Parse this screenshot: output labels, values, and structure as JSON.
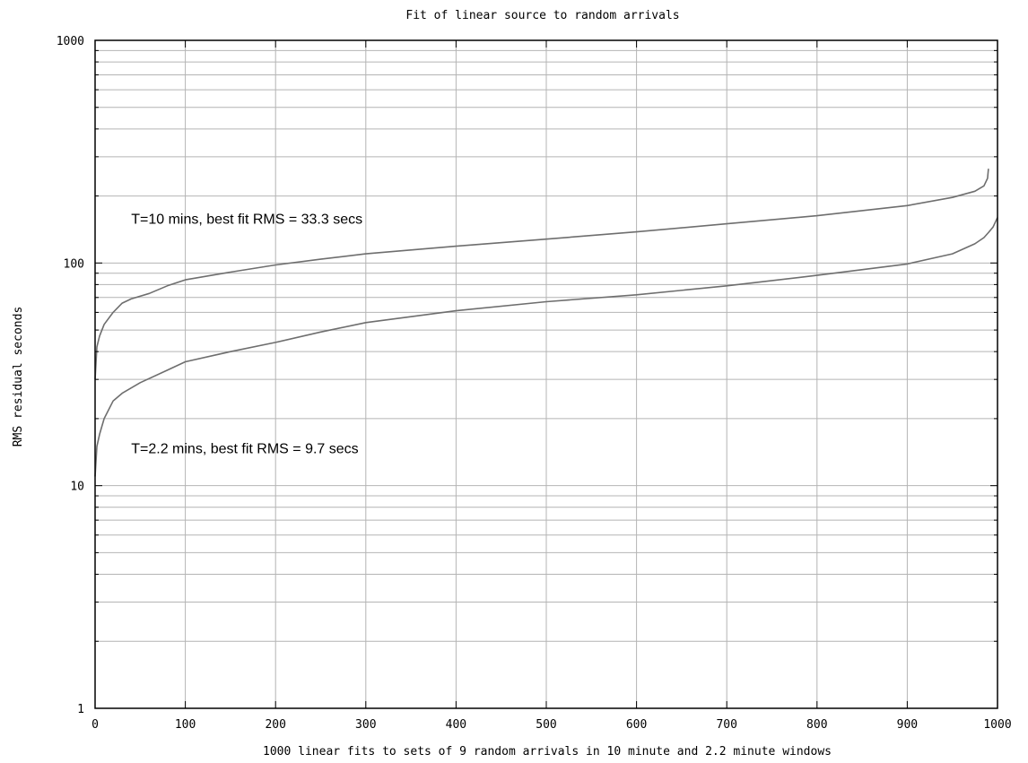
{
  "chart_data": {
    "type": "line",
    "title": "Fit of linear source to random arrivals",
    "xlabel": "1000 linear fits to sets of 9 random arrivals in 10 minute and 2.2 minute windows",
    "ylabel": "RMS residual seconds",
    "xlim": [
      0,
      1000
    ],
    "ylim": [
      1,
      1000
    ],
    "yscale": "log",
    "grid": true,
    "x_ticks": [
      0,
      100,
      200,
      300,
      400,
      500,
      600,
      700,
      800,
      900,
      1000
    ],
    "y_ticks": [
      1,
      10,
      100,
      1000
    ],
    "series": [
      {
        "name": "T=10 mins,  best fit RMS = 33.3 secs",
        "points": [
          [
            0,
            30
          ],
          [
            2,
            42
          ],
          [
            5,
            47
          ],
          [
            10,
            53
          ],
          [
            20,
            60
          ],
          [
            30,
            66
          ],
          [
            40,
            69
          ],
          [
            60,
            73
          ],
          [
            80,
            79
          ],
          [
            100,
            84
          ],
          [
            150,
            91
          ],
          [
            200,
            98
          ],
          [
            250,
            104
          ],
          [
            300,
            110
          ],
          [
            400,
            119
          ],
          [
            500,
            128
          ],
          [
            600,
            138
          ],
          [
            700,
            150
          ],
          [
            800,
            163
          ],
          [
            900,
            181
          ],
          [
            950,
            197
          ],
          [
            975,
            210
          ],
          [
            985,
            222
          ],
          [
            989,
            240
          ],
          [
            990,
            265
          ]
        ]
      },
      {
        "name": "T=2.2 mins,  best fit RMS = 9.7 secs",
        "points": [
          [
            0,
            11
          ],
          [
            2,
            15
          ],
          [
            5,
            17
          ],
          [
            10,
            20
          ],
          [
            20,
            24
          ],
          [
            30,
            26
          ],
          [
            50,
            29
          ],
          [
            80,
            33
          ],
          [
            100,
            36
          ],
          [
            150,
            40
          ],
          [
            200,
            44
          ],
          [
            250,
            49
          ],
          [
            300,
            54
          ],
          [
            400,
            61
          ],
          [
            500,
            67
          ],
          [
            600,
            72
          ],
          [
            700,
            79
          ],
          [
            800,
            88
          ],
          [
            900,
            99
          ],
          [
            950,
            110
          ],
          [
            975,
            122
          ],
          [
            985,
            130
          ],
          [
            990,
            137
          ],
          [
            995,
            145
          ],
          [
            1000,
            160
          ]
        ]
      }
    ],
    "annotations": [
      {
        "text": "T=10 mins,  best fit RMS = 33.3 secs",
        "x": 40,
        "y": 150
      },
      {
        "text": "T=2.2 mins,  best fit RMS = 9.7 secs",
        "x": 40,
        "y": 14
      }
    ],
    "colors": {
      "background": "#ffffff",
      "grid": "#b4b4b4",
      "axes": "#000000",
      "line": "#6e6e6e",
      "text": "#000000"
    }
  }
}
